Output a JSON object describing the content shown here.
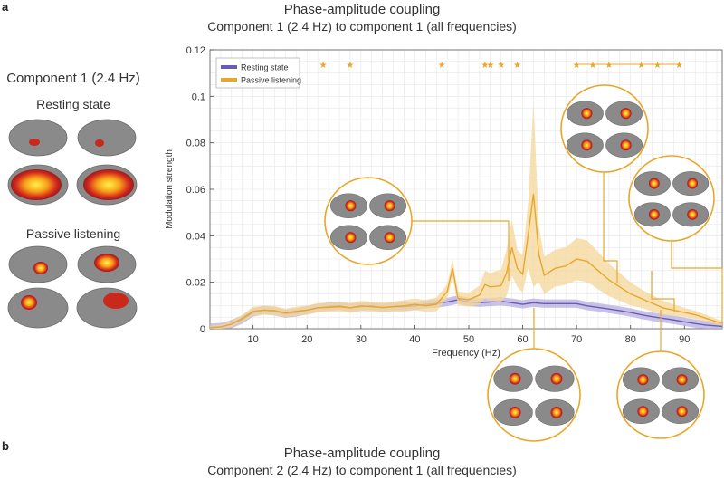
{
  "panel_a": {
    "letter": "a"
  },
  "panel_b": {
    "letter": "b"
  },
  "title_a": {
    "line1": "Phase-amplitude coupling",
    "line2": "Component 1 (2.4 Hz) to component 1 (all frequencies)"
  },
  "title_b": {
    "line1": "Phase-amplitude coupling",
    "line2": "Component 2 (2.4 Hz) to component 1 (all frequencies)"
  },
  "side": {
    "component_label": "Component 1 (2.4 Hz)",
    "resting_label": "Resting state",
    "passive_label": "Passive listening"
  },
  "colors": {
    "resting": "#6b5bb5",
    "passive": "#e8a72a",
    "resting_band": "#b7aee0",
    "passive_band": "#f4d79a",
    "grid": "#e6e6e6"
  },
  "chart_data": {
    "type": "line",
    "xlabel": "Frequency (Hz)",
    "ylabel": "Modulation strength",
    "xlim": [
      2,
      97
    ],
    "ylim": [
      0,
      0.12
    ],
    "xticks": [
      10,
      20,
      30,
      40,
      50,
      60,
      70,
      80,
      90
    ],
    "yticks": [
      0,
      0.02,
      0.04,
      0.06,
      0.08,
      0.1,
      0.12
    ],
    "ytick_labels": [
      "0",
      "0.02",
      "0.04",
      "0.06",
      "0.08",
      "0.1",
      "0.12"
    ],
    "grid": true,
    "legend_position": "top-left",
    "series": [
      {
        "name": "Resting state",
        "x": [
          2,
          4,
          6,
          8,
          10,
          12,
          14,
          16,
          18,
          20,
          22,
          24,
          26,
          28,
          30,
          32,
          34,
          36,
          38,
          40,
          42,
          44,
          46,
          48,
          50,
          52,
          54,
          56,
          58,
          60,
          62,
          64,
          66,
          68,
          70,
          72,
          74,
          76,
          78,
          80,
          82,
          84,
          86,
          88,
          90,
          92,
          94,
          96,
          97
        ],
        "y": [
          0.0005,
          0.0007,
          0.002,
          0.004,
          0.007,
          0.008,
          0.0075,
          0.0065,
          0.007,
          0.008,
          0.009,
          0.0095,
          0.0098,
          0.009,
          0.0095,
          0.0098,
          0.009,
          0.0095,
          0.0095,
          0.0098,
          0.0105,
          0.0108,
          0.0115,
          0.0125,
          0.0115,
          0.0112,
          0.0115,
          0.0118,
          0.0112,
          0.0105,
          0.0112,
          0.0108,
          0.0108,
          0.0108,
          0.0108,
          0.0098,
          0.0092,
          0.0085,
          0.0078,
          0.007,
          0.006,
          0.0052,
          0.0045,
          0.0038,
          0.003,
          0.0022,
          0.0016,
          0.0012,
          0.001
        ],
        "band": 0.0018
      },
      {
        "name": "Passive listening",
        "x": [
          2,
          4,
          6,
          8,
          10,
          12,
          14,
          16,
          18,
          20,
          22,
          24,
          26,
          28,
          30,
          32,
          34,
          36,
          38,
          40,
          42,
          44,
          46,
          47,
          48,
          50,
          52,
          53,
          54,
          56,
          57,
          58,
          59,
          60,
          61,
          62,
          63,
          64,
          66,
          68,
          70,
          72,
          74,
          76,
          78,
          80,
          82,
          84,
          86,
          88,
          90,
          92,
          94,
          96,
          97
        ],
        "y": [
          0.0005,
          0.0008,
          0.002,
          0.0045,
          0.0075,
          0.008,
          0.0078,
          0.0068,
          0.0075,
          0.008,
          0.009,
          0.0092,
          0.0095,
          0.009,
          0.0098,
          0.0095,
          0.0092,
          0.0095,
          0.0098,
          0.0105,
          0.0098,
          0.0105,
          0.016,
          0.026,
          0.013,
          0.0125,
          0.0145,
          0.019,
          0.018,
          0.0185,
          0.024,
          0.035,
          0.026,
          0.0235,
          0.04,
          0.058,
          0.032,
          0.023,
          0.026,
          0.027,
          0.03,
          0.029,
          0.025,
          0.021,
          0.018,
          0.015,
          0.013,
          0.011,
          0.009,
          0.008,
          0.007,
          0.006,
          0.0045,
          0.003,
          0.0025
        ],
        "band": [
          0.0008,
          0.001,
          0.0012,
          0.0015,
          0.002,
          0.002,
          0.002,
          0.0018,
          0.002,
          0.002,
          0.002,
          0.002,
          0.002,
          0.0022,
          0.0022,
          0.0022,
          0.0022,
          0.0022,
          0.0025,
          0.0025,
          0.0025,
          0.003,
          0.003,
          0.004,
          0.003,
          0.003,
          0.004,
          0.006,
          0.006,
          0.007,
          0.01,
          0.012,
          0.008,
          0.008,
          0.014,
          0.04,
          0.012,
          0.008,
          0.008,
          0.008,
          0.009,
          0.009,
          0.008,
          0.007,
          0.006,
          0.005,
          0.004,
          0.0035,
          0.003,
          0.0025,
          0.002,
          0.0018,
          0.0015,
          0.0012,
          0.001
        ]
      }
    ],
    "significance_markers": {
      "symbol": "★",
      "single_x": [
        23,
        28,
        45,
        53,
        54,
        56,
        59
      ],
      "linked_x": [
        70,
        73,
        76,
        82,
        85,
        89
      ]
    }
  }
}
